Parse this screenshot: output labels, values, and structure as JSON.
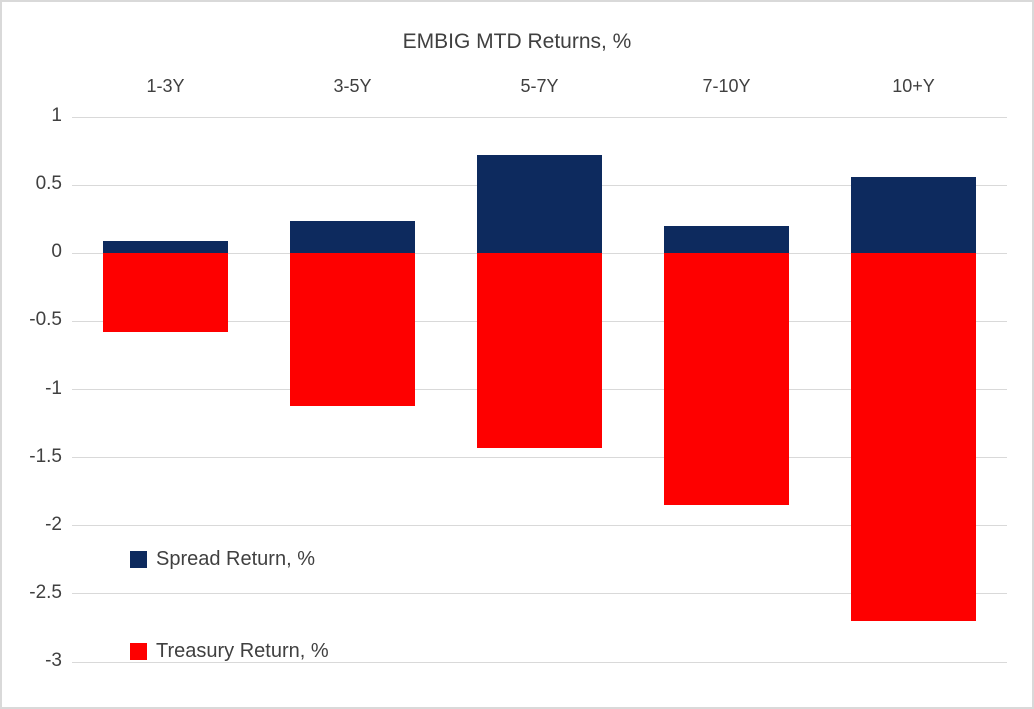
{
  "chart_data": {
    "type": "bar",
    "title": "EMBIG MTD Returns, %",
    "categories": [
      "1-3Y",
      "3-5Y",
      "5-7Y",
      "7-10Y",
      "10+Y"
    ],
    "series": [
      {
        "name": "Spread Return, %",
        "color": "#0d2a5e",
        "values": [
          0.09,
          0.24,
          0.72,
          0.2,
          0.56
        ]
      },
      {
        "name": "Treasury Return, %",
        "color": "#fe0000",
        "values": [
          -0.58,
          -1.12,
          -1.43,
          -1.85,
          -2.7
        ]
      }
    ],
    "ylim": [
      -3,
      1
    ],
    "yticks": [
      1,
      0.5,
      0,
      -0.5,
      -1,
      -1.5,
      -2,
      -2.5,
      -3
    ],
    "ytick_labels": [
      "1",
      "0.5",
      "0",
      "-0.5",
      "-1",
      "-1.5",
      "-2",
      "-2.5",
      "-3"
    ],
    "grid": true,
    "bar_style": "stacked-from-zero",
    "category_label_position": "top",
    "legend_position": "inside-bottom-left",
    "text_color": "#404040",
    "gridline_color": "#d9d9d9"
  }
}
